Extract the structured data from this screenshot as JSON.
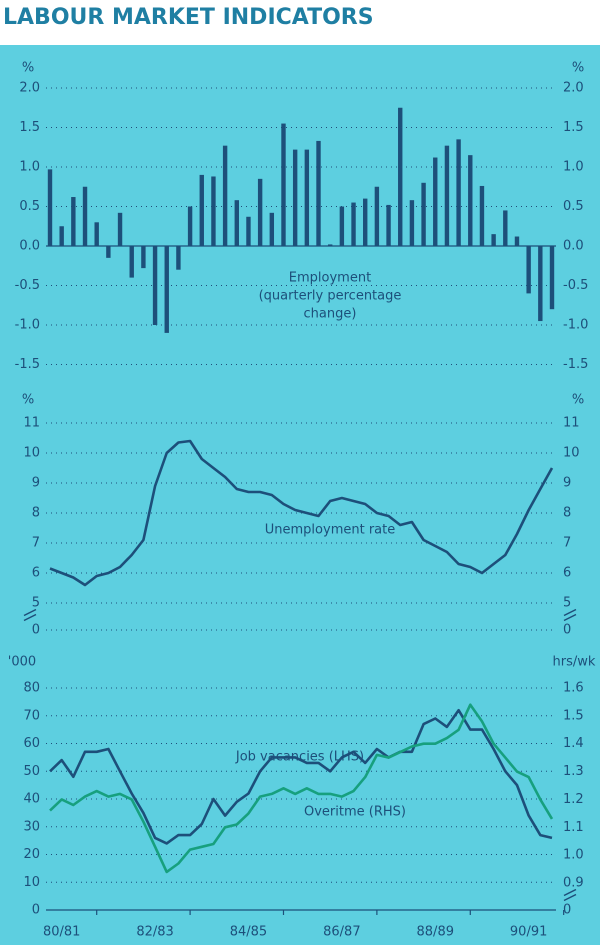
{
  "title": "LABOUR MARKET INDICATORS",
  "chart_data": [
    {
      "type": "bar",
      "annotation": [
        "Employment",
        "(quarterly percentage",
        "change)"
      ],
      "color": "#1d4f7a",
      "values": [
        0.97,
        0.25,
        0.62,
        0.75,
        0.3,
        -0.15,
        0.42,
        -0.4,
        -0.28,
        -1.0,
        -1.1,
        -0.3,
        0.5,
        0.9,
        0.88,
        1.27,
        0.58,
        0.37,
        0.85,
        0.42,
        1.55,
        1.22,
        1.22,
        1.33,
        0.02,
        0.5,
        0.55,
        0.6,
        0.75,
        0.52,
        1.75,
        0.58,
        0.8,
        1.12,
        1.27,
        1.35,
        1.15,
        0.76,
        0.15,
        0.45,
        0.12,
        -0.6,
        -0.95,
        -0.8
      ],
      "y_unit": "%",
      "ylim": [
        -1.5,
        2
      ],
      "yticks": [
        {
          "value": 2,
          "label": "2.0"
        },
        1.5,
        {
          "value": 1,
          "label": "1.0"
        },
        0.5,
        {
          "value": 0,
          "label": "0.0"
        },
        -0.5,
        {
          "value": -1,
          "label": "-1.0"
        },
        -1.5
      ],
      "grid": true
    },
    {
      "type": "line",
      "series": [
        {
          "name": "Unemployment rate",
          "color": "#1d4f7a",
          "values": [
            6.15,
            6.0,
            5.85,
            5.6,
            5.9,
            6.0,
            6.2,
            6.6,
            7.1,
            8.9,
            10.0,
            10.35,
            10.4,
            9.8,
            9.5,
            9.2,
            8.8,
            8.7,
            8.7,
            8.6,
            8.3,
            8.1,
            8.0,
            7.9,
            8.4,
            8.5,
            8.4,
            8.3,
            8.0,
            7.9,
            7.6,
            7.7,
            7.1,
            6.9,
            6.7,
            6.3,
            6.2,
            6.0,
            6.3,
            6.6,
            7.3,
            8.1,
            8.8,
            9.5
          ]
        }
      ],
      "y_unit": "%",
      "ylim": [
        0,
        11
      ],
      "ybreak": 5,
      "yticks": [
        11,
        10,
        9,
        8,
        7,
        6,
        5,
        0
      ],
      "grid": true
    },
    {
      "type": "line",
      "categories": [
        null,
        "80/81",
        null,
        null,
        null,
        null,
        null,
        null,
        null,
        "82/83",
        null,
        null,
        null,
        null,
        null,
        null,
        null,
        "84/85",
        null,
        null,
        null,
        null,
        null,
        null,
        null,
        "86/87",
        null,
        null,
        null,
        null,
        null,
        null,
        null,
        "88/89",
        null,
        null,
        null,
        null,
        null,
        null,
        null,
        "90/91",
        null,
        null
      ],
      "series": [
        {
          "name": "Job vacancies (LHS)",
          "color": "#1d4f7a",
          "axis": "y",
          "values": [
            50,
            54,
            48,
            57,
            57,
            58,
            50,
            42,
            35,
            26,
            24,
            27,
            27,
            31,
            40,
            34,
            39,
            42,
            50,
            55,
            55,
            55,
            53,
            53,
            50,
            55,
            57,
            53,
            58,
            55,
            57,
            57,
            67,
            69,
            66,
            72,
            65,
            65,
            58,
            50,
            45,
            34,
            27,
            26
          ]
        },
        {
          "name": "Overitme (RHS)",
          "color": "#17a07e",
          "axis": "y2",
          "values": [
            1.16,
            1.2,
            1.18,
            1.21,
            1.23,
            1.21,
            1.22,
            1.2,
            1.12,
            1.03,
            0.94,
            0.97,
            1.02,
            1.03,
            1.04,
            1.1,
            1.11,
            1.15,
            1.21,
            1.22,
            1.24,
            1.22,
            1.24,
            1.22,
            1.22,
            1.21,
            1.23,
            1.28,
            1.36,
            1.35,
            1.37,
            1.39,
            1.4,
            1.4,
            1.42,
            1.45,
            1.54,
            1.48,
            1.4,
            1.35,
            1.3,
            1.28,
            1.2,
            1.13
          ]
        }
      ],
      "y_unit": "'000",
      "y2_unit": "hrs/wk",
      "ylim": [
        0,
        80
      ],
      "yticks": [
        80,
        70,
        60,
        50,
        40,
        30,
        20,
        10,
        0
      ],
      "y2lim": [
        0,
        1.6
      ],
      "y2break": 0.9,
      "y2ticks": [
        1.6,
        1.5,
        1.4,
        1.3,
        1.2,
        1.1,
        {
          "value": 1,
          "label": "1.0"
        },
        0.9,
        0
      ],
      "grid": true
    }
  ]
}
